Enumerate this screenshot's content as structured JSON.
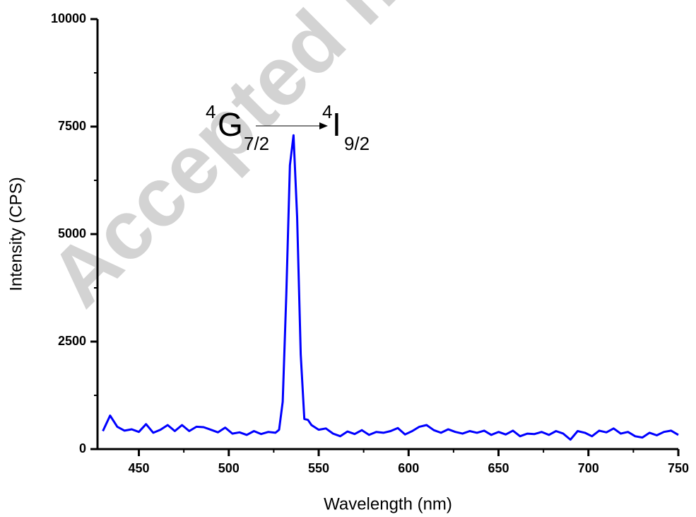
{
  "chart_data": {
    "type": "line",
    "watermark": "Accepted m",
    "xlabel": "Wavelength (nm)",
    "ylabel": "Intensity (CPS)",
    "annotation": {
      "from": {
        "sup": "4",
        "symbol": "G",
        "sub": "7/2"
      },
      "to": {
        "sup": "4",
        "symbol": "I",
        "sub": "9/2"
      }
    },
    "xlim": [
      427,
      750
    ],
    "xticks": [
      450,
      500,
      550,
      600,
      650,
      700,
      750
    ],
    "xminorticks": [
      475,
      525,
      575,
      625,
      675,
      725
    ],
    "ylim": [
      0,
      10000
    ],
    "yticks": [
      0,
      2500,
      5000,
      7500,
      10000
    ],
    "yminorticks": [
      1250,
      3750,
      6250,
      8750
    ],
    "x": [
      430,
      434,
      438,
      442,
      446,
      450,
      454,
      458,
      462,
      466,
      470,
      474,
      478,
      482,
      486,
      490,
      494,
      498,
      502,
      506,
      510,
      514,
      518,
      522,
      526,
      528,
      530,
      532,
      534,
      536,
      538,
      540,
      542,
      544,
      546,
      550,
      554,
      558,
      562,
      566,
      570,
      574,
      578,
      582,
      586,
      590,
      594,
      598,
      602,
      606,
      610,
      614,
      618,
      622,
      626,
      630,
      634,
      638,
      642,
      646,
      650,
      654,
      658,
      662,
      666,
      670,
      674,
      678,
      682,
      686,
      690,
      694,
      698,
      702,
      706,
      710,
      714,
      718,
      722,
      726,
      730,
      734,
      738,
      742,
      746,
      750
    ],
    "series": [
      {
        "color": "#0000ff",
        "values": [
          420,
          780,
          520,
          430,
          460,
          400,
          580,
          380,
          450,
          560,
          420,
          560,
          420,
          520,
          510,
          450,
          390,
          500,
          360,
          390,
          330,
          420,
          350,
          400,
          380,
          450,
          1100,
          3600,
          6600,
          7300,
          5400,
          2200,
          700,
          680,
          560,
          450,
          480,
          360,
          300,
          410,
          350,
          440,
          330,
          400,
          380,
          420,
          490,
          340,
          420,
          520,
          560,
          440,
          380,
          460,
          400,
          360,
          420,
          380,
          430,
          330,
          400,
          340,
          430,
          300,
          360,
          350,
          400,
          330,
          420,
          360,
          220,
          420,
          380,
          300,
          430,
          390,
          480,
          360,
          400,
          300,
          270,
          380,
          320,
          400,
          430,
          330
        ]
      }
    ]
  }
}
